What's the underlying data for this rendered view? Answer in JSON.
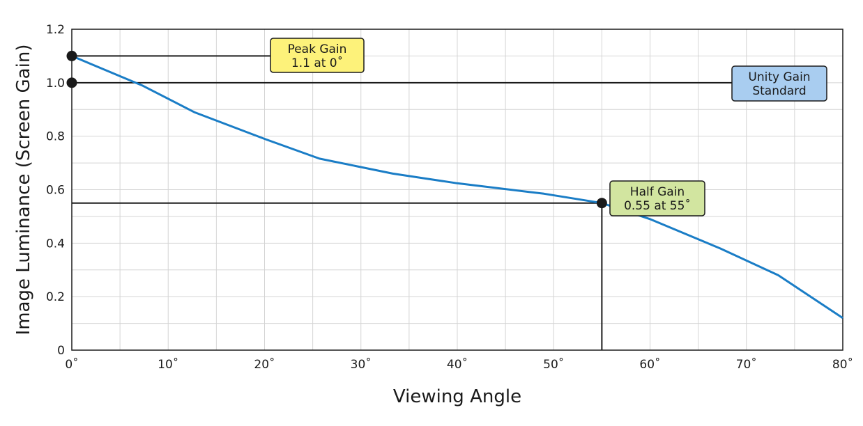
{
  "chart_data": {
    "type": "line",
    "xlabel": "Viewing Angle",
    "ylabel": "Image Luminance (Screen Gain)",
    "xlim": [
      0,
      80
    ],
    "ylim": [
      0,
      1.2
    ],
    "x_ticks": [
      0,
      10,
      20,
      30,
      40,
      50,
      60,
      70,
      80
    ],
    "x_tick_labels": [
      "0˚",
      "10˚",
      "20˚",
      "30˚",
      "40˚",
      "50˚",
      "60˚",
      "70˚",
      "80˚"
    ],
    "y_ticks": [
      0,
      0.2,
      0.4,
      0.6,
      0.8,
      1.0,
      1.2
    ],
    "y_tick_labels": [
      "0",
      "0.2",
      "0.4",
      "0.6",
      "0.8",
      "1.0",
      "1.2"
    ],
    "x_grid_step": 5,
    "y_grid_step": 0.1,
    "grid": true,
    "series": [
      {
        "color": "#1a7dc6",
        "points": [
          [
            0,
            1.1
          ],
          [
            7.3,
            0.99
          ],
          [
            12.7,
            0.89
          ],
          [
            20,
            0.79
          ],
          [
            25.7,
            0.716
          ],
          [
            33.3,
            0.66
          ],
          [
            40,
            0.624
          ],
          [
            49,
            0.585
          ],
          [
            55,
            0.55
          ],
          [
            60,
            0.49
          ],
          [
            67.3,
            0.38
          ],
          [
            73.3,
            0.28
          ],
          [
            80,
            0.12
          ]
        ]
      }
    ],
    "markers": [
      {
        "x": 0,
        "y": 1.1
      },
      {
        "x": 0,
        "y": 1.0
      },
      {
        "x": 55,
        "y": 0.55
      }
    ],
    "annotations": [
      {
        "lines": [
          "Peak Gain",
          "1.1 at 0˚"
        ],
        "fill": "#fdf27a",
        "x": 0,
        "y": 1.1
      },
      {
        "lines": [
          "Unity Gain",
          "Standard"
        ],
        "fill": "#a9cdf0",
        "x": 0,
        "y": 1.0
      },
      {
        "lines": [
          "Half Gain",
          "0.55 at 55˚"
        ],
        "fill": "#d2e5a0",
        "x": 55,
        "y": 0.55
      }
    ]
  }
}
